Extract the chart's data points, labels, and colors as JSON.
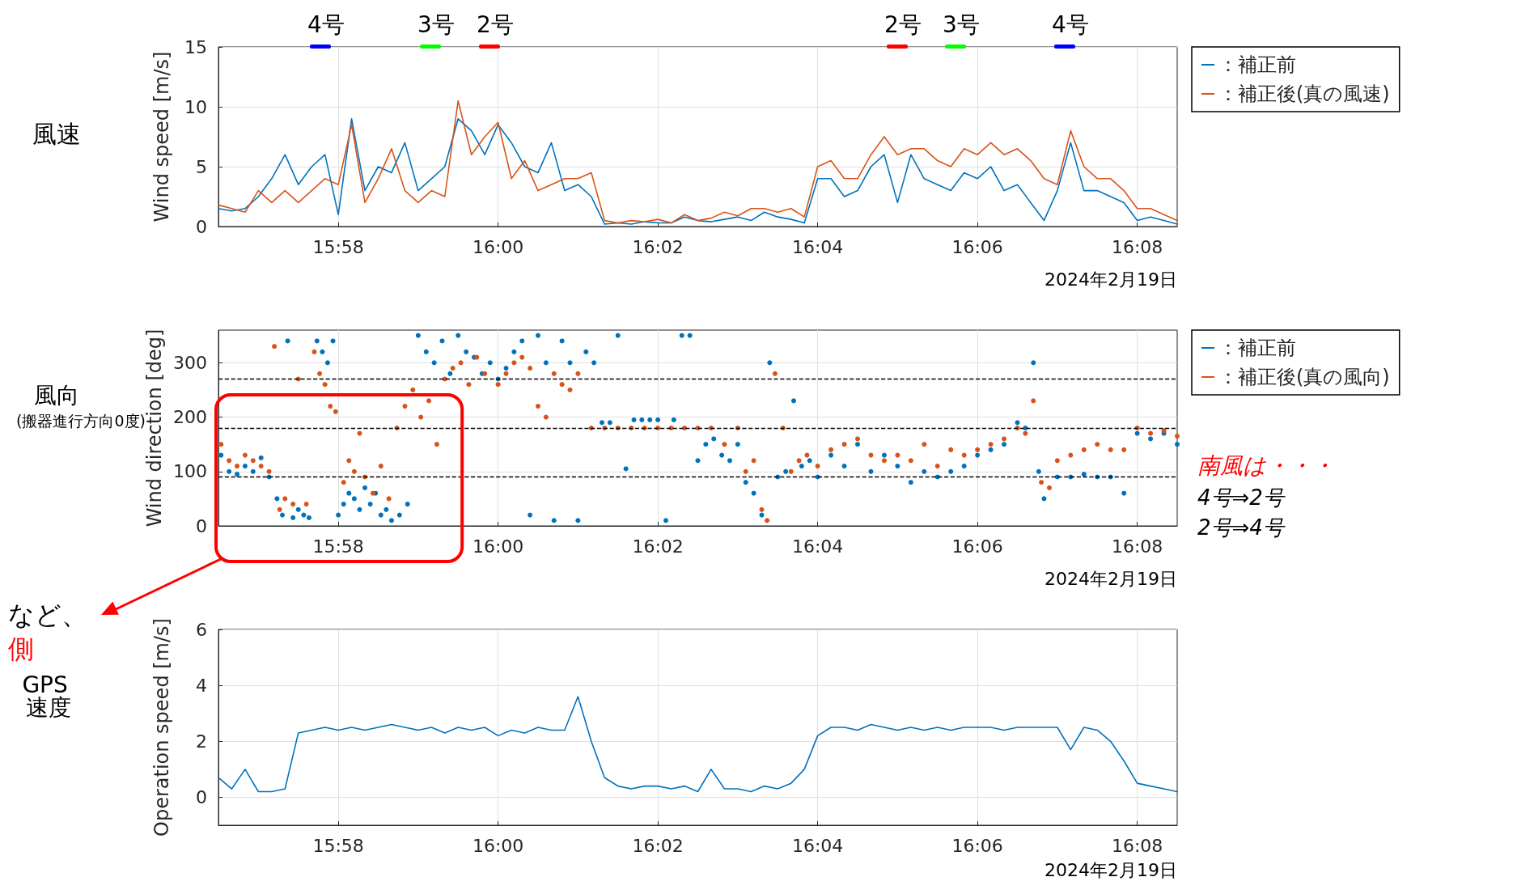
{
  "chart_data": [
    {
      "type": "line",
      "ylabel": "Wind speed [m/s]",
      "ylim": [
        0,
        15
      ],
      "yticks": [
        0,
        5,
        10,
        15
      ],
      "xlim": [
        "2024-02-19T15:56:30",
        "2024-02-19T16:08:30"
      ],
      "xticks": [
        {
          "value": "2024-02-19T15:58",
          "label": "15:58"
        },
        {
          "value": "2024-02-19T16:00",
          "label": "16:00"
        },
        {
          "value": "2024-02-19T16:02",
          "label": "16:02"
        },
        {
          "value": "2024-02-19T16:04",
          "label": "16:04"
        },
        {
          "value": "2024-02-19T16:06",
          "label": "16:06"
        },
        {
          "value": "2024-02-19T16:08",
          "label": "16:08"
        }
      ],
      "grid": true,
      "legend": "top right",
      "marker": "none",
      "line_style": "solid",
      "annotations": [
        "風速",
        "2024年2月19日",
        "4号",
        "3号",
        "2号",
        "2号",
        "3号",
        "4号"
      ],
      "x": [
        "2024-02-19T15:56:30",
        "2024-02-19T15:56:40",
        "2024-02-19T15:56:50",
        "2024-02-19T15:57:00",
        "2024-02-19T15:57:10",
        "2024-02-19T15:57:20",
        "2024-02-19T15:57:30",
        "2024-02-19T15:57:40",
        "2024-02-19T15:57:50",
        "2024-02-19T15:58:00",
        "2024-02-19T15:58:10",
        "2024-02-19T15:58:20",
        "2024-02-19T15:58:30",
        "2024-02-19T15:58:40",
        "2024-02-19T15:58:50",
        "2024-02-19T15:59:00",
        "2024-02-19T15:59:10",
        "2024-02-19T15:59:20",
        "2024-02-19T15:59:30",
        "2024-02-19T15:59:40",
        "2024-02-19T15:59:50",
        "2024-02-19T16:00:00",
        "2024-02-19T16:00:10",
        "2024-02-19T16:00:20",
        "2024-02-19T16:00:30",
        "2024-02-19T16:00:40",
        "2024-02-19T16:00:50",
        "2024-02-19T16:01:00",
        "2024-02-19T16:01:10",
        "2024-02-19T16:01:20",
        "2024-02-19T16:01:30",
        "2024-02-19T16:01:40",
        "2024-02-19T16:01:50",
        "2024-02-19T16:02:00",
        "2024-02-19T16:02:10",
        "2024-02-19T16:02:20",
        "2024-02-19T16:02:30",
        "2024-02-19T16:02:40",
        "2024-02-19T16:02:50",
        "2024-02-19T16:03:00",
        "2024-02-19T16:03:10",
        "2024-02-19T16:03:20",
        "2024-02-19T16:03:30",
        "2024-02-19T16:03:40",
        "2024-02-19T16:03:50",
        "2024-02-19T16:04:00",
        "2024-02-19T16:04:10",
        "2024-02-19T16:04:20",
        "2024-02-19T16:04:30",
        "2024-02-19T16:04:40",
        "2024-02-19T16:04:50",
        "2024-02-19T16:05:00",
        "2024-02-19T16:05:10",
        "2024-02-19T16:05:20",
        "2024-02-19T16:05:30",
        "2024-02-19T16:05:40",
        "2024-02-19T16:05:50",
        "2024-02-19T16:06:00",
        "2024-02-19T16:06:10",
        "2024-02-19T16:06:20",
        "2024-02-19T16:06:30",
        "2024-02-19T16:06:40",
        "2024-02-19T16:06:50",
        "2024-02-19T16:07:00",
        "2024-02-19T16:07:10",
        "2024-02-19T16:07:20",
        "2024-02-19T16:07:30",
        "2024-02-19T16:07:40",
        "2024-02-19T16:07:50",
        "2024-02-19T16:08:00",
        "2024-02-19T16:08:10",
        "2024-02-19T16:08:20",
        "2024-02-19T16:08:30"
      ],
      "series": [
        {
          "name": "：補正前",
          "color": "#0072bd",
          "values": [
            1.5,
            1.3,
            1.5,
            2.5,
            4,
            6,
            3.5,
            5,
            6,
            1,
            9,
            3,
            5,
            4.5,
            7,
            3,
            4,
            5,
            9,
            8,
            6,
            8.5,
            7,
            5,
            4.5,
            7,
            3,
            3.5,
            2.5,
            0.2,
            0.3,
            0.2,
            0.4,
            0.3,
            0.3,
            0.8,
            0.5,
            0.4,
            0.6,
            0.8,
            0.5,
            1.2,
            0.8,
            0.6,
            0.3,
            4,
            4,
            2.5,
            3,
            5,
            6,
            2,
            6,
            4,
            3.5,
            3,
            4.5,
            4,
            5,
            3,
            3.5,
            2,
            0.5,
            3,
            7,
            3,
            3,
            2.5,
            2,
            0.5,
            0.8,
            0.5,
            0.2
          ]
        },
        {
          "name": "：補正後(真の風速)",
          "color": "#d95319",
          "values": [
            1.8,
            1.5,
            1.2,
            3,
            2,
            3,
            2,
            3,
            4,
            3.5,
            8.5,
            2,
            4,
            6.5,
            3,
            2,
            3,
            2.5,
            10.5,
            6,
            7.5,
            8.7,
            4,
            5.5,
            3,
            3.5,
            4,
            4,
            4.5,
            0.5,
            0.3,
            0.5,
            0.4,
            0.6,
            0.3,
            1,
            0.5,
            0.7,
            1.2,
            0.9,
            1.5,
            1.5,
            1.2,
            1.5,
            0.8,
            5,
            5.5,
            4,
            4,
            6,
            7.5,
            6,
            6.5,
            6.5,
            5.5,
            5,
            6.5,
            6,
            7,
            6,
            6.5,
            5.5,
            4,
            3.5,
            8,
            5,
            4,
            4,
            3,
            1.5,
            1.5,
            1,
            0.5
          ]
        }
      ]
    },
    {
      "type": "scatter",
      "ylabel": "Wind direction [deg]",
      "ylim": [
        0,
        360
      ],
      "yticks": [
        0,
        100,
        200,
        300
      ],
      "xlim": [
        "2024-02-19T15:56:30",
        "2024-02-19T16:08:30"
      ],
      "xticks": [
        {
          "value": "2024-02-19T15:58",
          "label": "15:58"
        },
        {
          "value": "2024-02-19T16:00",
          "label": "16:00"
        },
        {
          "value": "2024-02-19T16:02",
          "label": "16:02"
        },
        {
          "value": "2024-02-19T16:04",
          "label": "16:04"
        },
        {
          "value": "2024-02-19T16:06",
          "label": "16:06"
        },
        {
          "value": "2024-02-19T16:08",
          "label": "16:08"
        }
      ],
      "grid": true,
      "legend": "top right",
      "marker": "circle",
      "annotations": [
        "風向",
        "(搬器進行方向0度)",
        "2024年2月19日",
        "南風は・・・",
        "4号⇒2号",
        "2号⇒4号"
      ],
      "ref_lines": [
        {
          "axis": "y",
          "value": 90,
          "color": "#000000",
          "line_style": "dashed"
        },
        {
          "axis": "y",
          "value": 180,
          "color": "#000000",
          "line_style": "dashed"
        },
        {
          "axis": "y",
          "value": 270,
          "color": "#000000",
          "line_style": "dashed"
        }
      ],
      "series": [
        {
          "name": "：補正前",
          "color": "#0072bd",
          "x": [
            "2024-02-19T15:56:32",
            "2024-02-19T15:56:38",
            "2024-02-19T15:56:44",
            "2024-02-19T15:56:50",
            "2024-02-19T15:56:56",
            "2024-02-19T15:57:02",
            "2024-02-19T15:57:08",
            "2024-02-19T15:57:14",
            "2024-02-19T15:57:18",
            "2024-02-19T15:57:22",
            "2024-02-19T15:57:26",
            "2024-02-19T15:57:30",
            "2024-02-19T15:57:34",
            "2024-02-19T15:57:38",
            "2024-02-19T15:57:44",
            "2024-02-19T15:57:48",
            "2024-02-19T15:57:52",
            "2024-02-19T15:57:56",
            "2024-02-19T15:58:00",
            "2024-02-19T15:58:04",
            "2024-02-19T15:58:08",
            "2024-02-19T15:58:12",
            "2024-02-19T15:58:16",
            "2024-02-19T15:58:20",
            "2024-02-19T15:58:24",
            "2024-02-19T15:58:28",
            "2024-02-19T15:58:32",
            "2024-02-19T15:58:36",
            "2024-02-19T15:58:40",
            "2024-02-19T15:58:46",
            "2024-02-19T15:58:52",
            "2024-02-19T15:59:00",
            "2024-02-19T15:59:06",
            "2024-02-19T15:59:12",
            "2024-02-19T15:59:18",
            "2024-02-19T15:59:24",
            "2024-02-19T15:59:30",
            "2024-02-19T15:59:36",
            "2024-02-19T15:59:42",
            "2024-02-19T15:59:48",
            "2024-02-19T15:59:54",
            "2024-02-19T16:00:00",
            "2024-02-19T16:00:06",
            "2024-02-19T16:00:12",
            "2024-02-19T16:00:18",
            "2024-02-19T16:00:24",
            "2024-02-19T16:00:30",
            "2024-02-19T16:00:36",
            "2024-02-19T16:00:42",
            "2024-02-19T16:00:48",
            "2024-02-19T16:00:54",
            "2024-02-19T16:01:00",
            "2024-02-19T16:01:06",
            "2024-02-19T16:01:12",
            "2024-02-19T16:01:18",
            "2024-02-19T16:01:24",
            "2024-02-19T16:01:30",
            "2024-02-19T16:01:36",
            "2024-02-19T16:01:42",
            "2024-02-19T16:01:48",
            "2024-02-19T16:01:54",
            "2024-02-19T16:02:00",
            "2024-02-19T16:02:06",
            "2024-02-19T16:02:12",
            "2024-02-19T16:02:18",
            "2024-02-19T16:02:24",
            "2024-02-19T16:02:30",
            "2024-02-19T16:02:36",
            "2024-02-19T16:02:42",
            "2024-02-19T16:02:48",
            "2024-02-19T16:02:54",
            "2024-02-19T16:03:00",
            "2024-02-19T16:03:06",
            "2024-02-19T16:03:12",
            "2024-02-19T16:03:18",
            "2024-02-19T16:03:24",
            "2024-02-19T16:03:30",
            "2024-02-19T16:03:36",
            "2024-02-19T16:03:42",
            "2024-02-19T16:03:48",
            "2024-02-19T16:03:54",
            "2024-02-19T16:04:00",
            "2024-02-19T16:04:10",
            "2024-02-19T16:04:20",
            "2024-02-19T16:04:30",
            "2024-02-19T16:04:40",
            "2024-02-19T16:04:50",
            "2024-02-19T16:05:00",
            "2024-02-19T16:05:10",
            "2024-02-19T16:05:20",
            "2024-02-19T16:05:30",
            "2024-02-19T16:05:40",
            "2024-02-19T16:05:50",
            "2024-02-19T16:06:00",
            "2024-02-19T16:06:10",
            "2024-02-19T16:06:20",
            "2024-02-19T16:06:30",
            "2024-02-19T16:06:36",
            "2024-02-19T16:06:42",
            "2024-02-19T16:06:46",
            "2024-02-19T16:06:50",
            "2024-02-19T16:07:00",
            "2024-02-19T16:07:10",
            "2024-02-19T16:07:20",
            "2024-02-19T16:07:30",
            "2024-02-19T16:07:40",
            "2024-02-19T16:07:50",
            "2024-02-19T16:08:00",
            "2024-02-19T16:08:10",
            "2024-02-19T16:08:20",
            "2024-02-19T16:08:30"
          ],
          "values": [
            130,
            100,
            95,
            110,
            100,
            125,
            90,
            50,
            20,
            340,
            15,
            30,
            20,
            15,
            340,
            320,
            300,
            340,
            20,
            40,
            60,
            50,
            30,
            70,
            40,
            60,
            20,
            30,
            10,
            20,
            40,
            350,
            320,
            300,
            340,
            280,
            350,
            320,
            310,
            280,
            300,
            270,
            290,
            320,
            340,
            20,
            350,
            300,
            10,
            340,
            300,
            10,
            320,
            300,
            190,
            190,
            350,
            105,
            195,
            195,
            195,
            195,
            10,
            195,
            350,
            350,
            120,
            150,
            160,
            130,
            120,
            150,
            80,
            60,
            20,
            300,
            90,
            100,
            230,
            110,
            120,
            90,
            130,
            110,
            150,
            100,
            130,
            110,
            80,
            100,
            90,
            100,
            110,
            130,
            140,
            150,
            190,
            180,
            300,
            100,
            50,
            90,
            90,
            95,
            90,
            90,
            60,
            170,
            160,
            170,
            150
          ]
        },
        {
          "name": "：補正後(真の風向)",
          "color": "#d95319",
          "x": [
            "2024-02-19T15:56:32",
            "2024-02-19T15:56:38",
            "2024-02-19T15:56:44",
            "2024-02-19T15:56:50",
            "2024-02-19T15:56:56",
            "2024-02-19T15:57:02",
            "2024-02-19T15:57:08",
            "2024-02-19T15:57:12",
            "2024-02-19T15:57:16",
            "2024-02-19T15:57:20",
            "2024-02-19T15:57:26",
            "2024-02-19T15:57:30",
            "2024-02-19T15:57:36",
            "2024-02-19T15:57:42",
            "2024-02-19T15:57:46",
            "2024-02-19T15:57:50",
            "2024-02-19T15:57:54",
            "2024-02-19T15:57:58",
            "2024-02-19T15:58:04",
            "2024-02-19T15:58:08",
            "2024-02-19T15:58:12",
            "2024-02-19T15:58:16",
            "2024-02-19T15:58:20",
            "2024-02-19T15:58:26",
            "2024-02-19T15:58:32",
            "2024-02-19T15:58:38",
            "2024-02-19T15:58:44",
            "2024-02-19T15:58:50",
            "2024-02-19T15:58:56",
            "2024-02-19T15:59:02",
            "2024-02-19T15:59:08",
            "2024-02-19T15:59:14",
            "2024-02-19T15:59:20",
            "2024-02-19T15:59:26",
            "2024-02-19T15:59:32",
            "2024-02-19T15:59:38",
            "2024-02-19T15:59:44",
            "2024-02-19T15:59:50",
            "2024-02-19T16:00:00",
            "2024-02-19T16:00:06",
            "2024-02-19T16:00:12",
            "2024-02-19T16:00:18",
            "2024-02-19T16:00:24",
            "2024-02-19T16:00:30",
            "2024-02-19T16:00:36",
            "2024-02-19T16:00:42",
            "2024-02-19T16:00:48",
            "2024-02-19T16:00:54",
            "2024-02-19T16:01:00",
            "2024-02-19T16:01:10",
            "2024-02-19T16:01:20",
            "2024-02-19T16:01:30",
            "2024-02-19T16:01:40",
            "2024-02-19T16:01:50",
            "2024-02-19T16:02:00",
            "2024-02-19T16:02:10",
            "2024-02-19T16:02:20",
            "2024-02-19T16:02:30",
            "2024-02-19T16:02:40",
            "2024-02-19T16:02:50",
            "2024-02-19T16:03:00",
            "2024-02-19T16:03:06",
            "2024-02-19T16:03:12",
            "2024-02-19T16:03:18",
            "2024-02-19T16:03:22",
            "2024-02-19T16:03:28",
            "2024-02-19T16:03:34",
            "2024-02-19T16:03:40",
            "2024-02-19T16:03:46",
            "2024-02-19T16:03:52",
            "2024-02-19T16:04:00",
            "2024-02-19T16:04:10",
            "2024-02-19T16:04:20",
            "2024-02-19T16:04:30",
            "2024-02-19T16:04:40",
            "2024-02-19T16:04:50",
            "2024-02-19T16:05:00",
            "2024-02-19T16:05:10",
            "2024-02-19T16:05:20",
            "2024-02-19T16:05:30",
            "2024-02-19T16:05:40",
            "2024-02-19T16:05:50",
            "2024-02-19T16:06:00",
            "2024-02-19T16:06:10",
            "2024-02-19T16:06:20",
            "2024-02-19T16:06:30",
            "2024-02-19T16:06:36",
            "2024-02-19T16:06:42",
            "2024-02-19T16:06:48",
            "2024-02-19T16:06:54",
            "2024-02-19T16:07:00",
            "2024-02-19T16:07:10",
            "2024-02-19T16:07:20",
            "2024-02-19T16:07:30",
            "2024-02-19T16:07:40",
            "2024-02-19T16:07:50",
            "2024-02-19T16:08:00",
            "2024-02-19T16:08:10",
            "2024-02-19T16:08:20",
            "2024-02-19T16:08:30"
          ],
          "values": [
            150,
            120,
            110,
            130,
            120,
            110,
            100,
            330,
            30,
            50,
            40,
            270,
            40,
            320,
            280,
            260,
            220,
            210,
            80,
            120,
            100,
            170,
            90,
            60,
            110,
            50,
            180,
            220,
            250,
            200,
            230,
            150,
            270,
            290,
            300,
            260,
            310,
            280,
            260,
            280,
            300,
            310,
            290,
            220,
            200,
            280,
            260,
            250,
            280,
            180,
            180,
            180,
            180,
            180,
            180,
            180,
            180,
            180,
            180,
            150,
            180,
            100,
            120,
            30,
            10,
            280,
            180,
            100,
            120,
            130,
            110,
            140,
            150,
            160,
            130,
            120,
            130,
            120,
            150,
            110,
            140,
            130,
            140,
            150,
            160,
            180,
            170,
            230,
            80,
            70,
            120,
            130,
            140,
            150,
            140,
            140,
            180,
            170,
            175,
            165
          ]
        }
      ]
    },
    {
      "type": "line",
      "ylabel": "Operation speed [m/s]",
      "ylim": [
        -1,
        6
      ],
      "yticks": [
        0,
        2,
        4,
        6
      ],
      "xlim": [
        "2024-02-19T15:56:30",
        "2024-02-19T16:08:30"
      ],
      "xticks": [
        {
          "value": "2024-02-19T15:58",
          "label": "15:58"
        },
        {
          "value": "2024-02-19T16:00",
          "label": "16:00"
        },
        {
          "value": "2024-02-19T16:02",
          "label": "16:02"
        },
        {
          "value": "2024-02-19T16:04",
          "label": "16:04"
        },
        {
          "value": "2024-02-19T16:06",
          "label": "16:06"
        },
        {
          "value": "2024-02-19T16:08",
          "label": "16:08"
        }
      ],
      "grid": true,
      "marker": "none",
      "line_style": "solid",
      "annotations": [
        "など、",
        "側",
        "GPS 速度",
        "2024年2月19日"
      ],
      "x": [
        "2024-02-19T15:56:30",
        "2024-02-19T15:56:40",
        "2024-02-19T15:56:50",
        "2024-02-19T15:57:00",
        "2024-02-19T15:57:10",
        "2024-02-19T15:57:20",
        "2024-02-19T15:57:30",
        "2024-02-19T15:57:40",
        "2024-02-19T15:57:50",
        "2024-02-19T15:58:00",
        "2024-02-19T15:58:10",
        "2024-02-19T15:58:20",
        "2024-02-19T15:58:30",
        "2024-02-19T15:58:40",
        "2024-02-19T15:58:50",
        "2024-02-19T15:59:00",
        "2024-02-19T15:59:10",
        "2024-02-19T15:59:20",
        "2024-02-19T15:59:30",
        "2024-02-19T15:59:40",
        "2024-02-19T15:59:50",
        "2024-02-19T16:00:00",
        "2024-02-19T16:00:10",
        "2024-02-19T16:00:20",
        "2024-02-19T16:00:30",
        "2024-02-19T16:00:40",
        "2024-02-19T16:00:50",
        "2024-02-19T16:01:00",
        "2024-02-19T16:01:10",
        "2024-02-19T16:01:20",
        "2024-02-19T16:01:30",
        "2024-02-19T16:01:40",
        "2024-02-19T16:01:50",
        "2024-02-19T16:02:00",
        "2024-02-19T16:02:10",
        "2024-02-19T16:02:20",
        "2024-02-19T16:02:30",
        "2024-02-19T16:02:40",
        "2024-02-19T16:02:50",
        "2024-02-19T16:03:00",
        "2024-02-19T16:03:10",
        "2024-02-19T16:03:20",
        "2024-02-19T16:03:30",
        "2024-02-19T16:03:40",
        "2024-02-19T16:03:50",
        "2024-02-19T16:04:00",
        "2024-02-19T16:04:10",
        "2024-02-19T16:04:20",
        "2024-02-19T16:04:30",
        "2024-02-19T16:04:40",
        "2024-02-19T16:04:50",
        "2024-02-19T16:05:00",
        "2024-02-19T16:05:10",
        "2024-02-19T16:05:20",
        "2024-02-19T16:05:30",
        "2024-02-19T16:05:40",
        "2024-02-19T16:05:50",
        "2024-02-19T16:06:00",
        "2024-02-19T16:06:10",
        "2024-02-19T16:06:20",
        "2024-02-19T16:06:30",
        "2024-02-19T16:06:40",
        "2024-02-19T16:06:50",
        "2024-02-19T16:07:00",
        "2024-02-19T16:07:10",
        "2024-02-19T16:07:20",
        "2024-02-19T16:07:30",
        "2024-02-19T16:07:40",
        "2024-02-19T16:07:50",
        "2024-02-19T16:08:00",
        "2024-02-19T16:08:10",
        "2024-02-19T16:08:20",
        "2024-02-19T16:08:30"
      ],
      "series": [
        {
          "color": "#0072bd",
          "values": [
            0.7,
            0.3,
            1.0,
            0.2,
            0.2,
            0.3,
            2.3,
            2.4,
            2.5,
            2.4,
            2.5,
            2.4,
            2.5,
            2.6,
            2.5,
            2.4,
            2.5,
            2.3,
            2.5,
            2.4,
            2.5,
            2.2,
            2.4,
            2.3,
            2.5,
            2.4,
            2.4,
            3.6,
            2.0,
            0.7,
            0.4,
            0.3,
            0.4,
            0.4,
            0.3,
            0.4,
            0.2,
            1.0,
            0.3,
            0.3,
            0.2,
            0.4,
            0.3,
            0.5,
            1.0,
            2.2,
            2.5,
            2.5,
            2.4,
            2.6,
            2.5,
            2.4,
            2.5,
            2.4,
            2.5,
            2.4,
            2.5,
            2.5,
            2.5,
            2.4,
            2.5,
            2.5,
            2.5,
            2.5,
            1.7,
            2.5,
            2.4,
            2.0,
            1.3,
            0.5,
            0.4,
            0.3,
            0.2
          ]
        }
      ]
    }
  ]
}
